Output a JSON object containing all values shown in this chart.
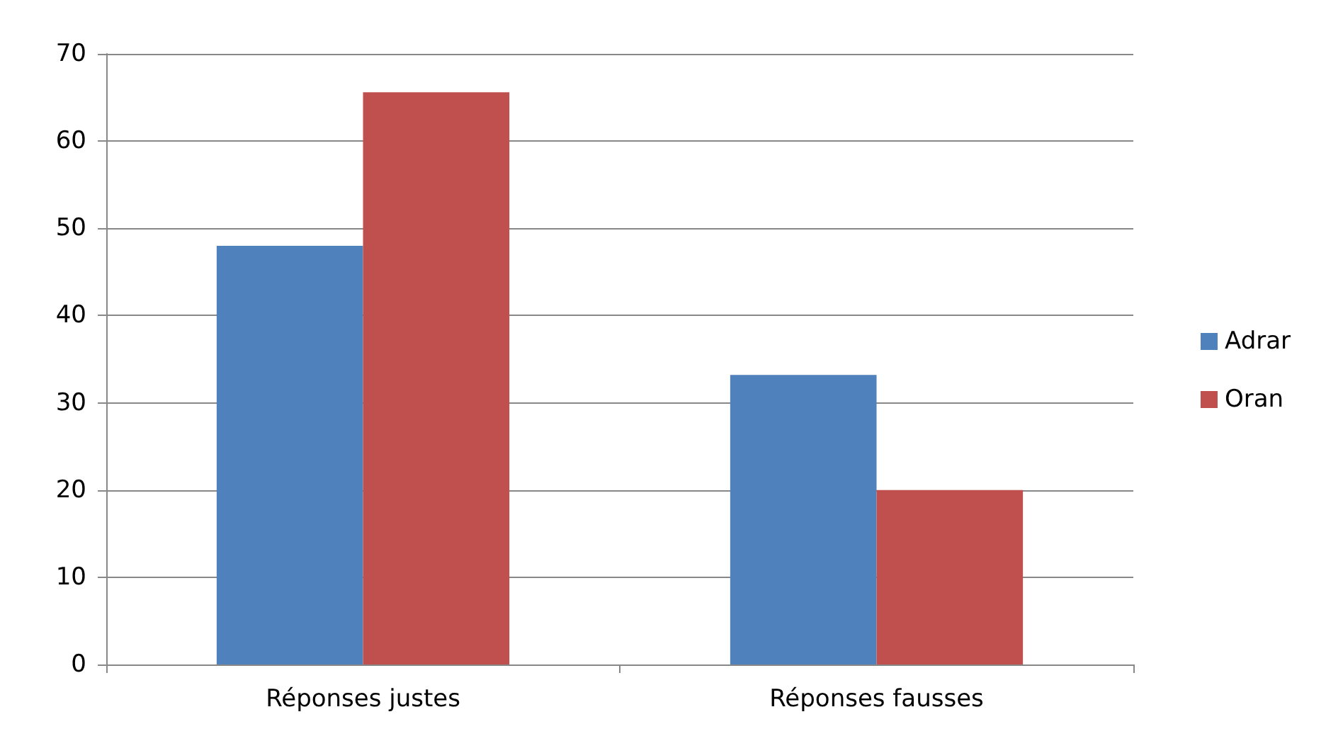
{
  "chart_data": {
    "type": "bar",
    "categories": [
      "Réponses justes",
      "Réponses fausses"
    ],
    "series": [
      {
        "name": "Adrar",
        "color": "#4f81bd",
        "values": [
          48,
          33.2
        ]
      },
      {
        "name": "Oran",
        "color": "#c0504d",
        "values": [
          65.6,
          20
        ]
      }
    ],
    "ylim": [
      0,
      70
    ],
    "yticks": [
      0,
      10,
      20,
      30,
      40,
      50,
      60,
      70
    ],
    "grid": "y",
    "legend": "right"
  }
}
